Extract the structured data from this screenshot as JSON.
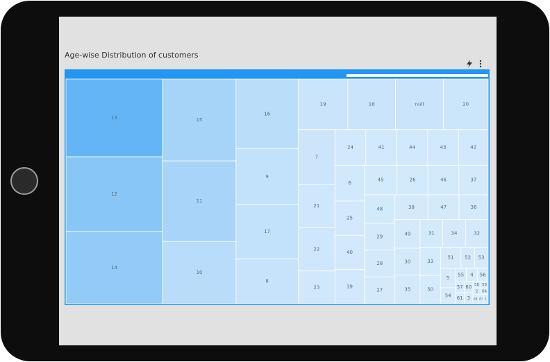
{
  "chart_data": {
    "type": "treemap",
    "title": "Age-wise Distribution of customers",
    "categories": [
      "13",
      "12",
      "14",
      "15",
      "11",
      "10",
      "16",
      "9",
      "17",
      "8",
      "19",
      "18",
      "null",
      "20",
      "7",
      "21",
      "22",
      "23",
      "24",
      "41",
      "44",
      "43",
      "42",
      "6",
      "25",
      "40",
      "39",
      "45",
      "26",
      "46",
      "37",
      "48",
      "29",
      "28",
      "27",
      "38",
      "47",
      "36",
      "49",
      "30",
      "35",
      "31",
      "34",
      "32",
      "33",
      "50",
      "51",
      "52",
      "53",
      "5",
      "54",
      "55",
      "4",
      "56",
      "57",
      "61",
      "60",
      "3",
      "58",
      "59",
      "2",
      "64",
      "66",
      "70",
      "1"
    ],
    "values": [
      156,
      150,
      145,
      125,
      123,
      95,
      90,
      72,
      70,
      58,
      52,
      50,
      50,
      47,
      42,
      33,
      33,
      25,
      23,
      23,
      23,
      23,
      22,
      22,
      21,
      21,
      21,
      20,
      19,
      19,
      18,
      18,
      17,
      17,
      17,
      17,
      16,
      15,
      15,
      14,
      15,
      13,
      13,
      13,
      12,
      12,
      9,
      6,
      6,
      6,
      5,
      3,
      3,
      3,
      2,
      2,
      2,
      2,
      1,
      1,
      1,
      1,
      1,
      1,
      1
    ],
    "color_max": "#64b5f6",
    "color_min": "#d8ebfc"
  }
}
